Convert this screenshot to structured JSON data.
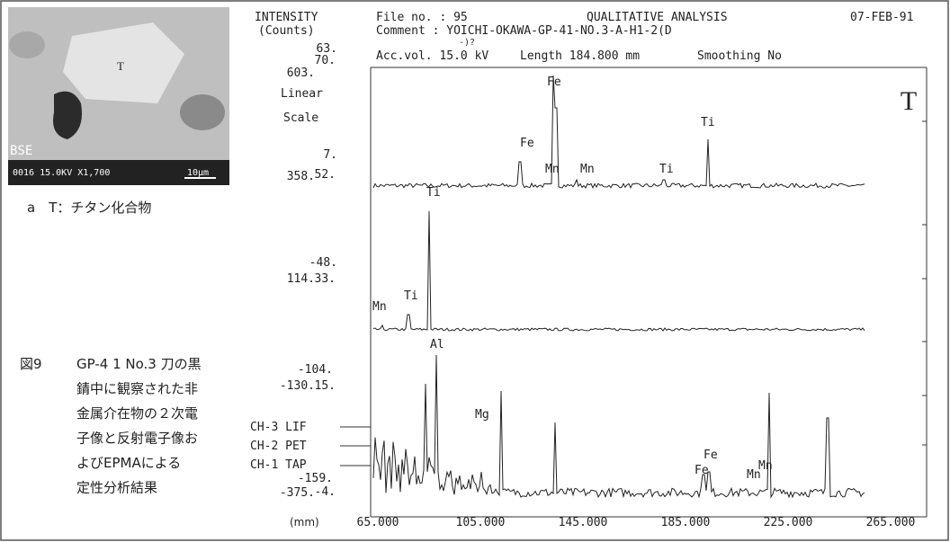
{
  "photo": {
    "label": "T",
    "corner": "BSE",
    "info": "0016 15.0KV  X1,700",
    "scale_bar": "10μm",
    "caption": "a　T：チタン化合物"
  },
  "figure_caption": {
    "number": "図9",
    "lines": [
      "GP-4 1 No.3 刀の黒",
      "錆中に観察された非",
      "金属介在物の２次電",
      "子像と反射電子像お",
      "よびEPMAによる",
      "定性分析結果"
    ]
  },
  "header": {
    "intensity": "INTENSITY",
    "counts": "(Counts)",
    "file_no": "File no. :  95",
    "title": "QUALITATIVE ANALYSIS",
    "date": "07-FEB-91",
    "comment": "Comment  : YOICHI-OKAWA-GP-41-NO.3-A-H1-2(D",
    "comment_mark": "-)?",
    "acc_vol": "Acc.vol. 15.0 kV",
    "length": "Length 184.800 mm",
    "smoothing": "Smoothing No",
    "scale": [
      "Linear",
      "Scale"
    ],
    "panel_label": "T"
  },
  "y_labels": {
    "ch3": [
      "603.",
      "63.",
      "70."
    ],
    "ch2": [
      "358.",
      "7.",
      "52."
    ],
    "ch1": [
      "114.",
      "-48.",
      "33."
    ],
    "low1": [
      "-130.",
      "-104.",
      "15."
    ],
    "low2": [
      "-375.",
      "-159.",
      "-4."
    ]
  },
  "channels": [
    "CH-3 LIF",
    "CH-2 PET",
    "CH-1 TAP"
  ],
  "x_axis": {
    "unit": "(mm)",
    "labels": [
      "65.000",
      "105.000",
      "145.000",
      "185.000",
      "225.000",
      "265.000"
    ]
  },
  "peaks": {
    "lif": [
      "Fe",
      "Fe",
      "Mn",
      "Mn",
      "Ti",
      "Ti"
    ],
    "pet": [
      "Ti",
      "Mn",
      "Ti"
    ],
    "tap": [
      "Al",
      "Mg",
      "Fe",
      "Fe",
      "Mn",
      "Mn"
    ]
  }
}
